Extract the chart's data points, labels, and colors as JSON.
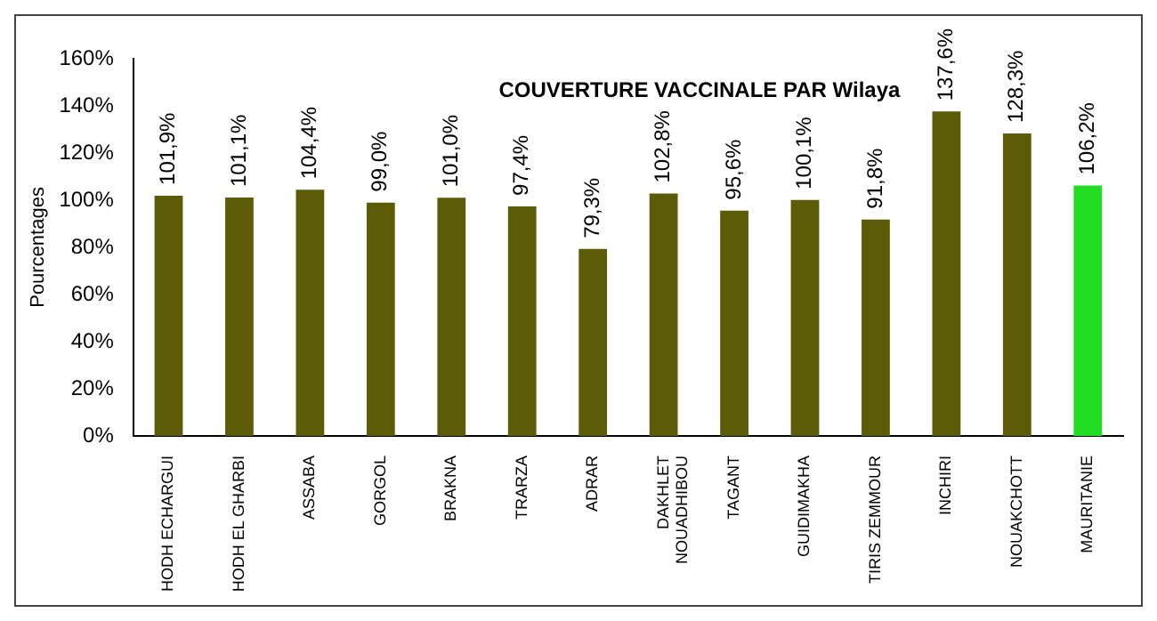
{
  "chart_data": {
    "type": "bar",
    "title": "COUVERTURE VACCINALE PAR Wilaya",
    "ylabel": "Pourcentages",
    "categories": [
      "HODH ECHARGUI",
      "HODH EL GHARBI",
      "ASSABA",
      "GORGOL",
      "BRAKNA",
      "TRARZA",
      "ADRAR",
      "DAKHLET NOUADHIBOU",
      "TAGANT",
      "GUIDIMAKHA",
      "TIRIS ZEMMOUR",
      "INCHIRI",
      "NOUAKCHOTT",
      "MAURITANIE"
    ],
    "values": [
      101.9,
      101.1,
      104.4,
      99.0,
      101.0,
      97.4,
      79.3,
      102.8,
      95.6,
      100.1,
      91.8,
      137.6,
      128.3,
      106.2
    ],
    "value_labels": [
      "101,9%",
      "101,1%",
      "104,4%",
      "99,0%",
      "101,0%",
      "97,4%",
      "79,3%",
      "102,8%",
      "95,6%",
      "100,1%",
      "91,8%",
      "137,6%",
      "128,3%",
      "106,2%"
    ],
    "colors": [
      "#5c5c08",
      "#5c5c08",
      "#5c5c08",
      "#5c5c08",
      "#5c5c08",
      "#5c5c08",
      "#5c5c08",
      "#5c5c08",
      "#5c5c08",
      "#5c5c08",
      "#5c5c08",
      "#5c5c08",
      "#5c5c08",
      "#22dd22"
    ],
    "ylim": [
      0,
      160
    ],
    "yticks": [
      {
        "value": 0,
        "label": "0%"
      },
      {
        "value": 20,
        "label": "20%"
      },
      {
        "value": 40,
        "label": "40%"
      },
      {
        "value": 60,
        "label": "60%"
      },
      {
        "value": 80,
        "label": "80%"
      },
      {
        "value": 100,
        "label": "100%"
      },
      {
        "value": 120,
        "label": "120%"
      },
      {
        "value": 140,
        "label": "140%"
      },
      {
        "value": 160,
        "label": "160%"
      }
    ],
    "grid": false,
    "legend": false
  }
}
